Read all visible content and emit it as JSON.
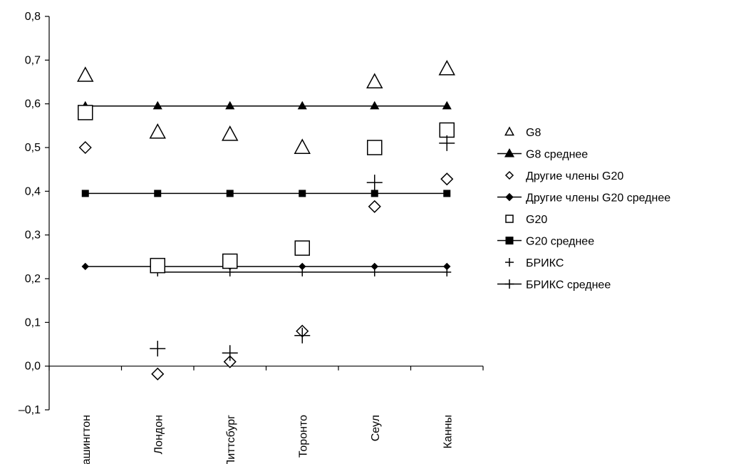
{
  "chart_data": {
    "type": "scatter",
    "categories": [
      "Вашингтон",
      "Лондон",
      "Питтсбург",
      "Торонто",
      "Сеул",
      "Канны"
    ],
    "ylim": [
      -0.1,
      0.8
    ],
    "yticks": [
      "0,8",
      "0,7",
      "0,6",
      "0,5",
      "0,4",
      "0,3",
      "0,2",
      "0,1",
      "0,0",
      "–0,1"
    ],
    "grid": false,
    "legend_position": "right",
    "series": [
      {
        "name": "G8",
        "kind": "points",
        "marker": "triangle-open",
        "values": [
          0.665,
          0.535,
          0.53,
          0.5,
          0.65,
          0.68
        ]
      },
      {
        "name": "G8 среднее",
        "kind": "line",
        "marker": "triangle-filled",
        "values": [
          0.595,
          0.595,
          0.595,
          0.595,
          0.595,
          0.595
        ]
      },
      {
        "name": "Другие члены G20",
        "kind": "points",
        "marker": "diamond-open",
        "values": [
          0.5,
          -0.018,
          0.01,
          0.08,
          0.365,
          0.428
        ]
      },
      {
        "name": "Другие члены G20 среднее",
        "kind": "line",
        "marker": "diamond-filled",
        "values": [
          0.228,
          0.228,
          0.228,
          0.228,
          0.228,
          0.228
        ]
      },
      {
        "name": "G20",
        "kind": "points",
        "marker": "square-open",
        "values": [
          0.58,
          0.23,
          0.24,
          0.27,
          0.5,
          0.54
        ]
      },
      {
        "name": "G20 среднее",
        "kind": "line",
        "marker": "square-filled",
        "values": [
          0.395,
          0.395,
          0.395,
          0.395,
          0.395,
          0.395
        ]
      },
      {
        "name": "БРИКС",
        "kind": "points",
        "marker": "plus",
        "values": [
          null,
          0.04,
          0.03,
          0.07,
          0.42,
          0.51
        ]
      },
      {
        "name": "БРИКС среднее",
        "kind": "line",
        "marker": "plus",
        "values": [
          null,
          0.215,
          0.215,
          0.215,
          0.215,
          0.215
        ]
      }
    ]
  }
}
